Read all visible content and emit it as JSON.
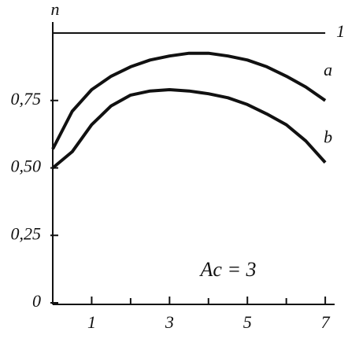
{
  "chart_data": {
    "type": "line",
    "y_label": "n",
    "annotation": "Ac = 3",
    "x": [
      0,
      0.5,
      1,
      1.5,
      2,
      2.5,
      3,
      3.5,
      4,
      4.5,
      5,
      5.5,
      6,
      6.5,
      7
    ],
    "series": [
      {
        "name": "1",
        "color": "#111111",
        "values": [
          1,
          1,
          1,
          1,
          1,
          1,
          1,
          1,
          1,
          1,
          1,
          1,
          1,
          1,
          1
        ]
      },
      {
        "name": "a",
        "color": "#111111",
        "values": [
          0.57,
          0.71,
          0.79,
          0.84,
          0.875,
          0.9,
          0.915,
          0.925,
          0.925,
          0.915,
          0.9,
          0.875,
          0.84,
          0.8,
          0.75
        ]
      },
      {
        "name": "b",
        "color": "#111111",
        "values": [
          0.5,
          0.56,
          0.66,
          0.73,
          0.77,
          0.785,
          0.79,
          0.785,
          0.775,
          0.76,
          0.735,
          0.7,
          0.66,
          0.6,
          0.52
        ]
      }
    ],
    "xlim": [
      0,
      7.2
    ],
    "ylim": [
      0,
      1
    ],
    "xticks": [
      1,
      3,
      5,
      7
    ],
    "xminorticks": [
      2,
      4,
      6
    ],
    "yticks": [
      0,
      {
        "value": 0.25,
        "label": "0,25"
      },
      {
        "value": 0.5,
        "label": "0,50"
      },
      {
        "value": 0.75,
        "label": "0,75"
      }
    ],
    "grid": false
  }
}
